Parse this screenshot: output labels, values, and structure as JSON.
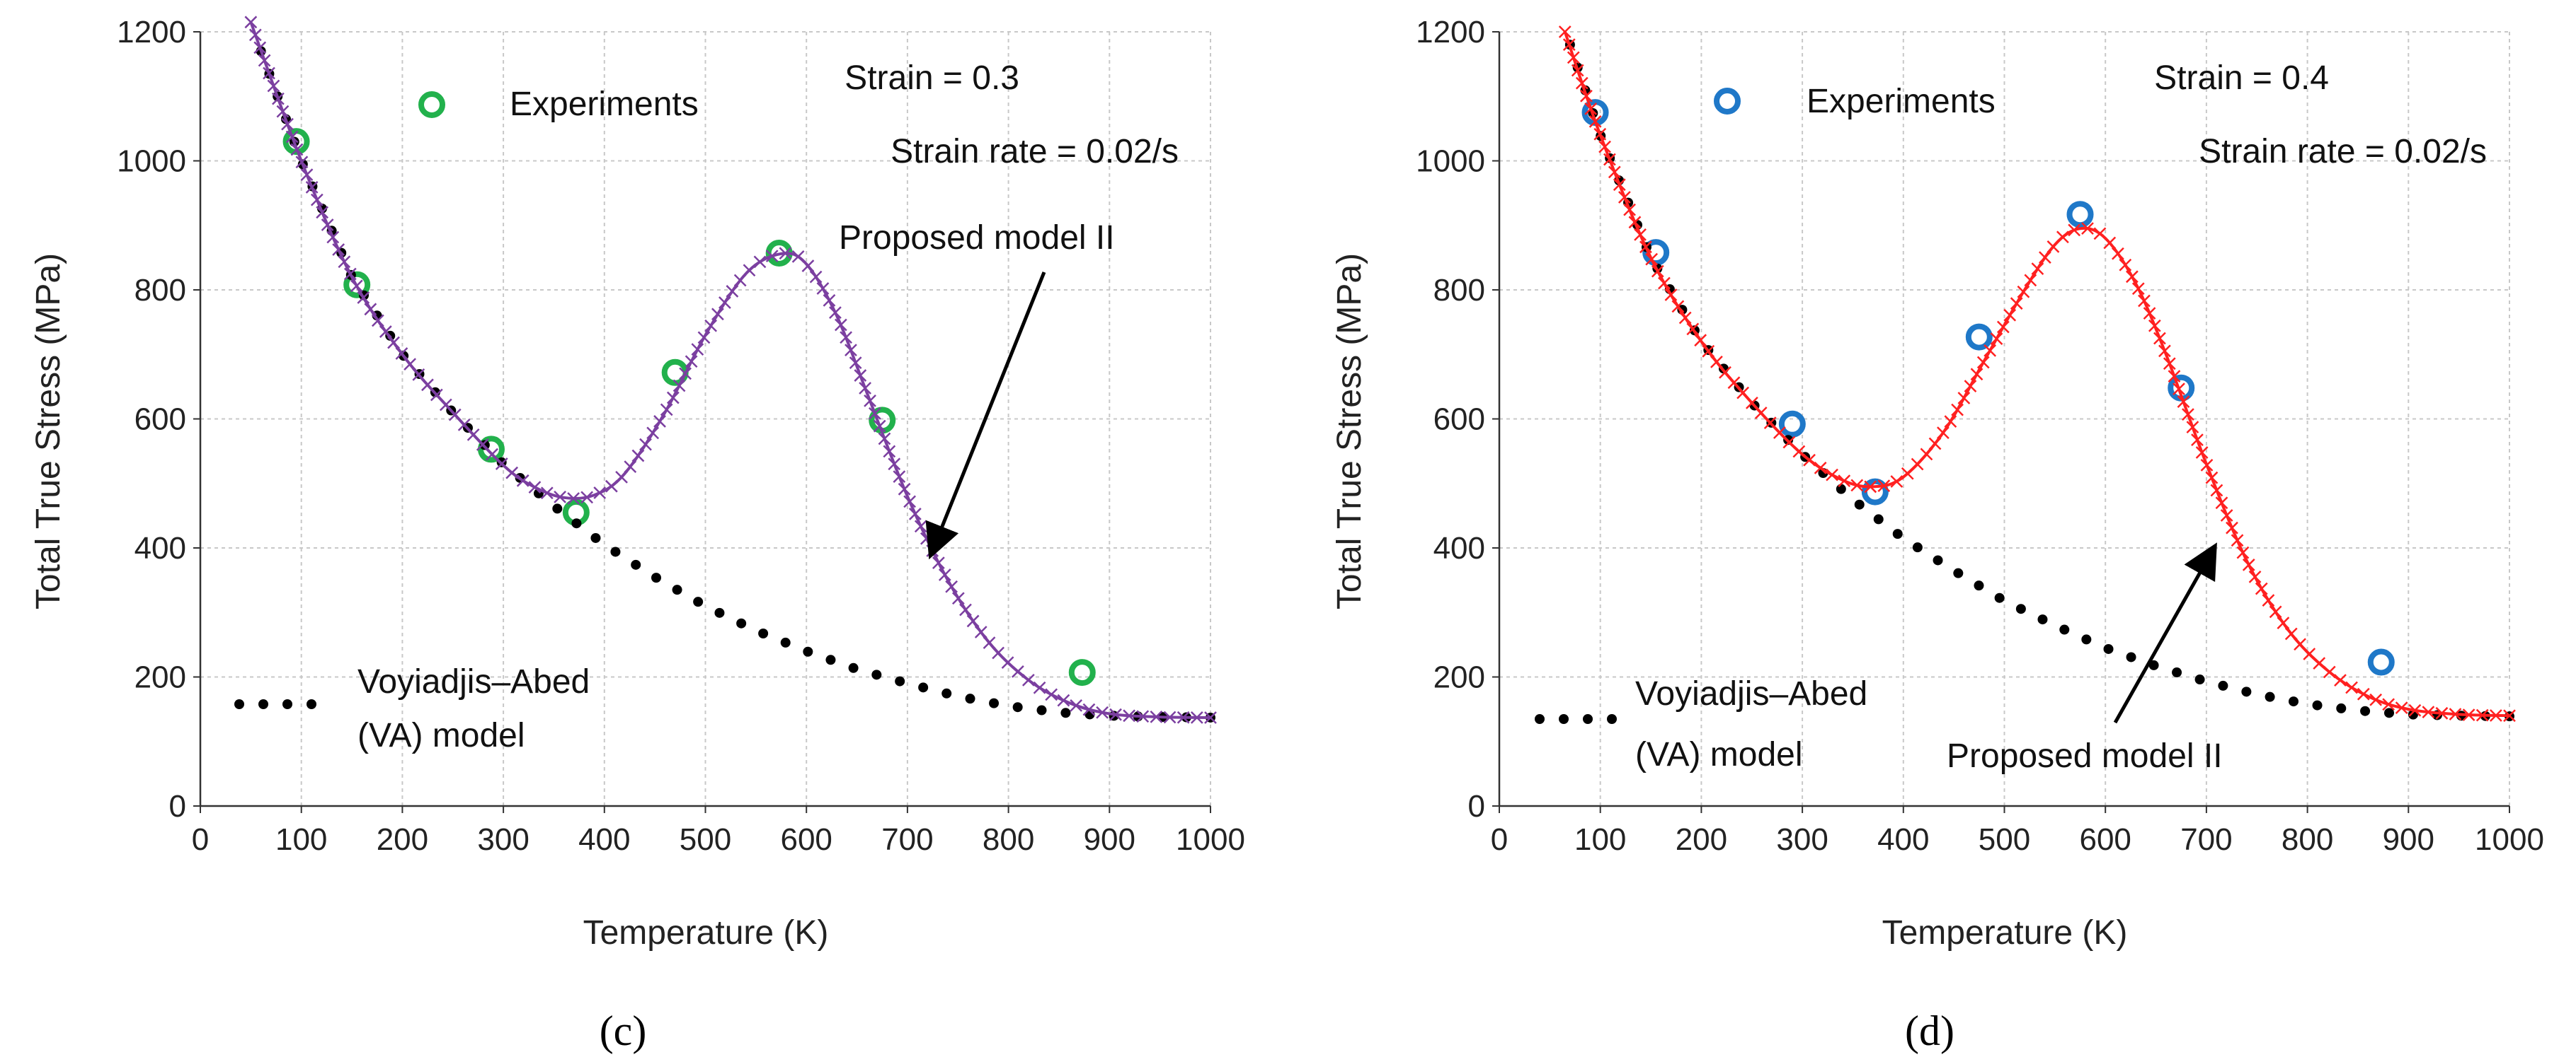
{
  "chart_data": [
    {
      "type": "scatter",
      "panel_label": "(c)",
      "xlabel": "Temperature (K)",
      "ylabel": "Total True Stress (MPa)",
      "xlim": [
        0,
        1000
      ],
      "ylim": [
        0,
        1200
      ],
      "xticks": [
        0,
        100,
        200,
        300,
        400,
        500,
        600,
        700,
        800,
        900,
        1000
      ],
      "yticks": [
        0,
        200,
        400,
        600,
        800,
        1000,
        1200
      ],
      "grid": true,
      "annotations": {
        "strain": "Strain = 0.3",
        "strain_rate": "Strain rate = 0.02/s",
        "experiments": "Experiments",
        "model2": "Proposed model II",
        "va_line1": "Voyiadjis–Abed",
        "va_line2": "(VA) model"
      },
      "series": [
        {
          "name": "Experiments",
          "style": "circle",
          "color": "#22b14c",
          "x": [
            95,
            155,
            288,
            372,
            470,
            573,
            675,
            873
          ],
          "y": [
            1030,
            808,
            553,
            455,
            672,
            857,
            598,
            207
          ]
        },
        {
          "name": "Voyiadjis–Abed (VA) model",
          "style": "dots",
          "color": "#000000",
          "x": [
            60,
            100,
            150,
            200,
            250,
            300,
            350,
            400,
            450,
            500,
            550,
            600,
            650,
            700,
            750,
            800,
            850,
            900,
            950,
            1000
          ],
          "y": [
            1170,
            1000,
            820,
            700,
            610,
            530,
            465,
            405,
            355,
            310,
            272,
            240,
            212,
            190,
            170,
            155,
            145,
            140,
            138,
            137
          ]
        },
        {
          "name": "Proposed model II",
          "style": "line-x",
          "color": "#7b3fa0",
          "x": [
            50,
            100,
            150,
            200,
            250,
            300,
            330,
            360,
            390,
            420,
            460,
            500,
            540,
            575,
            600,
            630,
            660,
            700,
            740,
            780,
            820,
            860,
            900,
            950,
            1000
          ],
          "y": [
            1215,
            1000,
            820,
            700,
            610,
            528,
            495,
            478,
            482,
            515,
            610,
            730,
            825,
            856,
            840,
            760,
            640,
            480,
            350,
            255,
            195,
            160,
            143,
            138,
            137
          ]
        }
      ]
    },
    {
      "type": "scatter",
      "panel_label": "(d)",
      "xlabel": "Temperature (K)",
      "ylabel": "Total True Stress (MPa)",
      "xlim": [
        0,
        1000
      ],
      "ylim": [
        0,
        1200
      ],
      "xticks": [
        0,
        100,
        200,
        300,
        400,
        500,
        600,
        700,
        800,
        900,
        1000
      ],
      "yticks": [
        0,
        200,
        400,
        600,
        800,
        1000,
        1200
      ],
      "grid": true,
      "annotations": {
        "strain": "Strain = 0.4",
        "strain_rate": "Strain rate = 0.02/s",
        "experiments": "Experiments",
        "model2": "Proposed model II",
        "va_line1": "Voyiadjis–Abed",
        "va_line2": "(VA) model"
      },
      "series": [
        {
          "name": "Experiments",
          "style": "circle",
          "color": "#1f78c8",
          "x": [
            95,
            155,
            290,
            372,
            475,
            575,
            675,
            873
          ],
          "y": [
            1075,
            858,
            592,
            487,
            727,
            917,
            648,
            223
          ]
        },
        {
          "name": "Voyiadjis–Abed (VA) model",
          "style": "dots",
          "color": "#000000",
          "x": [
            70,
            100,
            150,
            200,
            250,
            300,
            350,
            400,
            450,
            500,
            550,
            600,
            650,
            700,
            750,
            800,
            850,
            900,
            950,
            1000
          ],
          "y": [
            1180,
            1040,
            850,
            720,
            625,
            545,
            475,
            415,
            365,
            318,
            280,
            245,
            217,
            193,
            173,
            158,
            148,
            142,
            140,
            139
          ]
        },
        {
          "name": "Proposed model II",
          "style": "line-x",
          "color": "#ff2020",
          "x": [
            65,
            100,
            150,
            200,
            250,
            300,
            340,
            370,
            400,
            440,
            480,
            520,
            550,
            575,
            600,
            630,
            660,
            700,
            740,
            780,
            820,
            860,
            900,
            950,
            1000
          ],
          "y": [
            1200,
            1040,
            850,
            720,
            625,
            545,
            505,
            495,
            510,
            580,
            690,
            800,
            870,
            895,
            880,
            810,
            700,
            530,
            380,
            275,
            210,
            170,
            150,
            142,
            140
          ]
        }
      ]
    }
  ]
}
